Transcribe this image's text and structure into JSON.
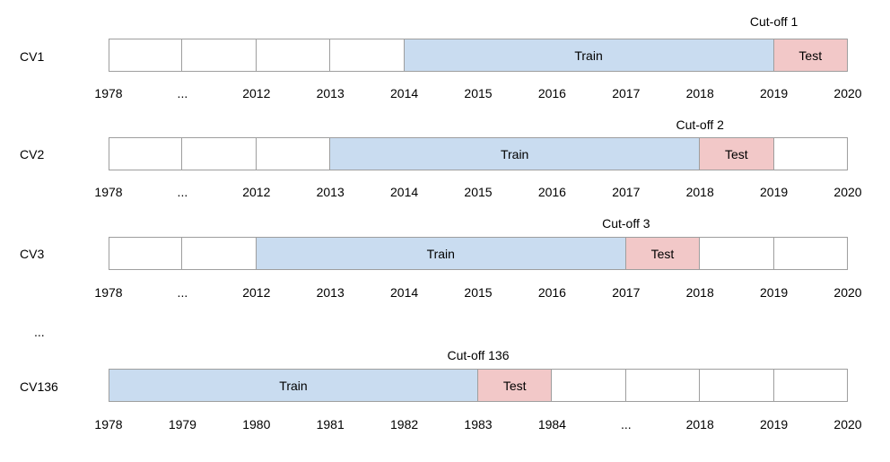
{
  "rows": [
    {
      "label": "CV1",
      "cutoff": "Cut-off 1",
      "cells": [
        "empty",
        "empty",
        "empty",
        "empty",
        "train",
        "train",
        "train",
        "train",
        "train",
        "test"
      ],
      "train_label": "Train",
      "test_label": "Test",
      "ticks": [
        "1978",
        "...",
        "2012",
        "2013",
        "2014",
        "2015",
        "2016",
        "2017",
        "2018",
        "2019",
        "2020"
      ]
    },
    {
      "label": "CV2",
      "cutoff": "Cut-off 2",
      "cells": [
        "empty",
        "empty",
        "empty",
        "train",
        "train",
        "train",
        "train",
        "train",
        "test",
        "empty"
      ],
      "train_label": "Train",
      "test_label": "Test",
      "ticks": [
        "1978",
        "...",
        "2012",
        "2013",
        "2014",
        "2015",
        "2016",
        "2017",
        "2018",
        "2019",
        "2020"
      ]
    },
    {
      "label": "CV3",
      "cutoff": "Cut-off 3",
      "cells": [
        "empty",
        "empty",
        "train",
        "train",
        "train",
        "train",
        "train",
        "test",
        "empty",
        "empty"
      ],
      "train_label": "Train",
      "test_label": "Test",
      "ticks": [
        "1978",
        "...",
        "2012",
        "2013",
        "2014",
        "2015",
        "2016",
        "2017",
        "2018",
        "2019",
        "2020"
      ]
    },
    {
      "label": "CV136",
      "cutoff": "Cut-off 136",
      "cells": [
        "train",
        "train",
        "train",
        "train",
        "train",
        "test",
        "empty",
        "empty",
        "empty",
        "empty"
      ],
      "train_label": "Train",
      "test_label": "Test",
      "ticks": [
        "1978",
        "1979",
        "1980",
        "1981",
        "1982",
        "1983",
        "1984",
        "...",
        "2018",
        "2019",
        "2020"
      ]
    }
  ],
  "gap_ellipsis": "...",
  "colors": {
    "train": "#c9dcf0",
    "test": "#f2c8c8",
    "border": "#9e9e9e"
  }
}
